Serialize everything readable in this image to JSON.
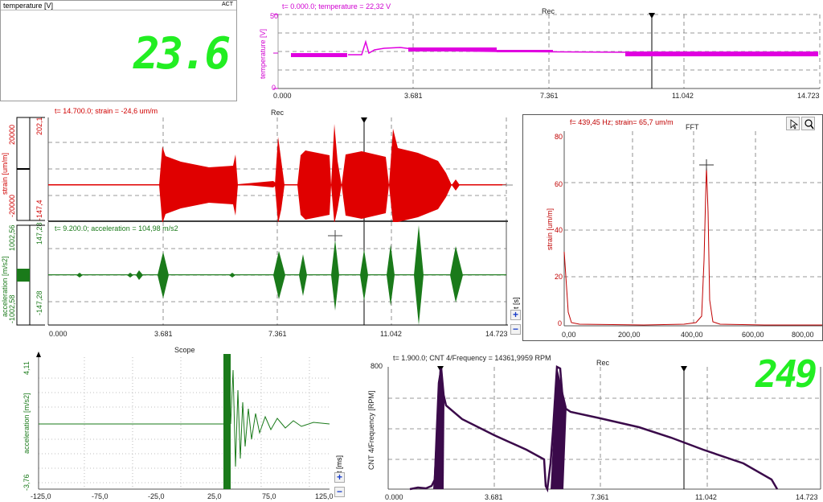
{
  "temp_display": {
    "title": "temperature [V]",
    "badge": "ACT",
    "value": "23.6"
  },
  "top_rec": {
    "cursor": "t= 0.000.0; temperature = 22,32 V",
    "title": "Rec",
    "ylabel": "temperature [V]",
    "yticks": [
      "50",
      "0"
    ],
    "xticks": [
      "0.000",
      "3.681",
      "7.361",
      "11.042",
      "14.723"
    ],
    "color": "#e000e0"
  },
  "strain_rec": {
    "cursor": "t= 14.700.0; strain = -24,6 um/m",
    "title": "Rec",
    "ylabel": "strain [um/m]",
    "ytop": "20000",
    "ybot": "-20000",
    "scale_top": "202,1",
    "scale_bot": "-147,4",
    "color": "#e00000"
  },
  "accel_rec": {
    "cursor": "t= 9.200.0; acceleration = 104,98 m/s2",
    "ylabel": "acceleration [m/s2]",
    "ytop": "1002,56",
    "ybot": "-1002,58",
    "scale_top": "147,28",
    "scale_bot": "-147,28",
    "xticks": [
      "0.000",
      "3.681",
      "7.361",
      "11.042",
      "14.723"
    ],
    "axis_unit": "t [s]",
    "color": "#1a7a1a"
  },
  "fft": {
    "cursor": "f= 439,45 Hz; strain= 65,7 um/m",
    "title": "FFT",
    "ylabel": "strain [um/m]",
    "yticks": [
      "80",
      "60",
      "40",
      "20",
      "0"
    ],
    "xticks": [
      "0,00",
      "200,00",
      "400,00",
      "600,00",
      "800,00"
    ],
    "color": "#c00000"
  },
  "scope": {
    "title": "Scope",
    "ylabel": "acceleration [m/s2]",
    "ytop": "4,11",
    "ybot": "-3,76",
    "xticks": [
      "-125,0",
      "-75,0",
      "-25,0",
      "25,0",
      "75,0",
      "125,0"
    ],
    "axis_unit": "t [ms]",
    "color": "#1a7a1a"
  },
  "freq_rec": {
    "cursor": "t= 1.900.0; CNT 4/Frequency = 14361,9959 RPM",
    "title": "Rec",
    "ylabel": "CNT 4/Frequency [RPM]",
    "ytop": "800",
    "xticks": [
      "0.000",
      "3.681",
      "7.361",
      "11.042",
      "14.723"
    ],
    "color": "#3a0a4a"
  },
  "rpm_display": {
    "value": "249"
  },
  "buttons": {
    "plus": "+",
    "minus": "−"
  },
  "icons": {
    "pointer": "pointer-icon",
    "zoom": "zoom-icon"
  }
}
